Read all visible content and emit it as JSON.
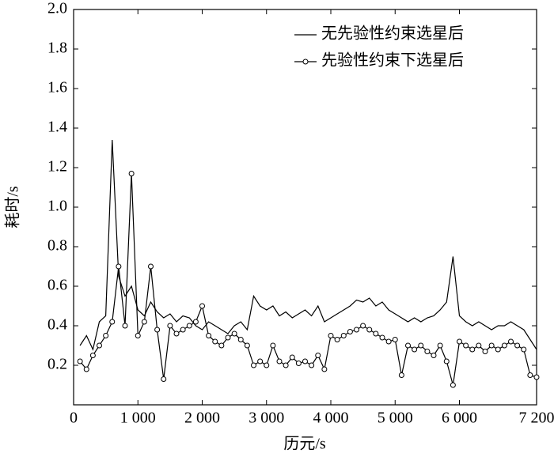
{
  "chart_data": {
    "type": "line",
    "xlabel": "历元/s",
    "ylabel": "耗时/s",
    "xlim": [
      0,
      7200
    ],
    "xticks": [
      0,
      {
        "value": 1000,
        "label": "1 000"
      },
      {
        "value": 2000,
        "label": "2 000"
      },
      {
        "value": 3000,
        "label": "3 000"
      },
      {
        "value": 4000,
        "label": "4 000"
      },
      {
        "value": 5000,
        "label": "5 000"
      },
      {
        "value": 6000,
        "label": "6 000"
      },
      {
        "value": 7200,
        "label": "7 200"
      }
    ],
    "ylim": [
      0,
      2.0
    ],
    "yticks": [
      0.2,
      0.4,
      0.6,
      0.8,
      {
        "value": 1.0,
        "label": "1.0"
      },
      1.2,
      1.4,
      1.6,
      1.8,
      {
        "value": 2.0,
        "label": "2.0"
      }
    ],
    "legend": "upper right",
    "x": [
      100,
      200,
      300,
      400,
      500,
      600,
      700,
      800,
      900,
      1000,
      1100,
      1200,
      1300,
      1400,
      1500,
      1600,
      1700,
      1800,
      1900,
      2000,
      2100,
      2200,
      2300,
      2400,
      2500,
      2600,
      2700,
      2800,
      2900,
      3000,
      3100,
      3200,
      3300,
      3400,
      3500,
      3600,
      3700,
      3800,
      3900,
      4000,
      4100,
      4200,
      4300,
      4400,
      4500,
      4600,
      4700,
      4800,
      4900,
      5000,
      5100,
      5200,
      5300,
      5400,
      5500,
      5600,
      5700,
      5800,
      5900,
      6000,
      6100,
      6200,
      6300,
      6400,
      6500,
      6600,
      6700,
      6800,
      6900,
      7000,
      7100,
      7200
    ],
    "series": [
      {
        "name": "无先验性约束选星后",
        "color": "#000000",
        "marker": "none",
        "values": [
          0.3,
          0.35,
          0.28,
          0.42,
          0.45,
          1.34,
          0.65,
          0.55,
          0.6,
          0.48,
          0.45,
          0.52,
          0.47,
          0.44,
          0.46,
          0.42,
          0.45,
          0.44,
          0.4,
          0.38,
          0.42,
          0.4,
          0.38,
          0.36,
          0.4,
          0.42,
          0.38,
          0.55,
          0.5,
          0.48,
          0.5,
          0.45,
          0.47,
          0.44,
          0.46,
          0.48,
          0.45,
          0.5,
          0.42,
          0.44,
          0.46,
          0.48,
          0.5,
          0.53,
          0.52,
          0.54,
          0.5,
          0.52,
          0.48,
          0.46,
          0.44,
          0.42,
          0.44,
          0.42,
          0.44,
          0.45,
          0.48,
          0.52,
          0.75,
          0.45,
          0.42,
          0.4,
          0.42,
          0.4,
          0.38,
          0.4,
          0.4,
          0.42,
          0.4,
          0.38,
          0.33,
          0.28
        ]
      },
      {
        "name": "先验性约束下选星后",
        "color": "#000000",
        "marker": "circle",
        "values": [
          0.22,
          0.18,
          0.25,
          0.3,
          0.35,
          0.42,
          0.7,
          0.4,
          1.17,
          0.35,
          0.42,
          0.7,
          0.38,
          0.13,
          0.4,
          0.36,
          0.38,
          0.4,
          0.42,
          0.5,
          0.35,
          0.32,
          0.3,
          0.34,
          0.36,
          0.33,
          0.3,
          0.2,
          0.22,
          0.2,
          0.3,
          0.22,
          0.2,
          0.24,
          0.21,
          0.22,
          0.2,
          0.25,
          0.18,
          0.35,
          0.33,
          0.35,
          0.37,
          0.38,
          0.4,
          0.38,
          0.36,
          0.34,
          0.32,
          0.33,
          0.15,
          0.3,
          0.28,
          0.3,
          0.27,
          0.25,
          0.3,
          0.22,
          0.1,
          0.32,
          0.3,
          0.28,
          0.3,
          0.27,
          0.3,
          0.28,
          0.3,
          0.32,
          0.3,
          0.28,
          0.15,
          0.14
        ]
      }
    ]
  }
}
